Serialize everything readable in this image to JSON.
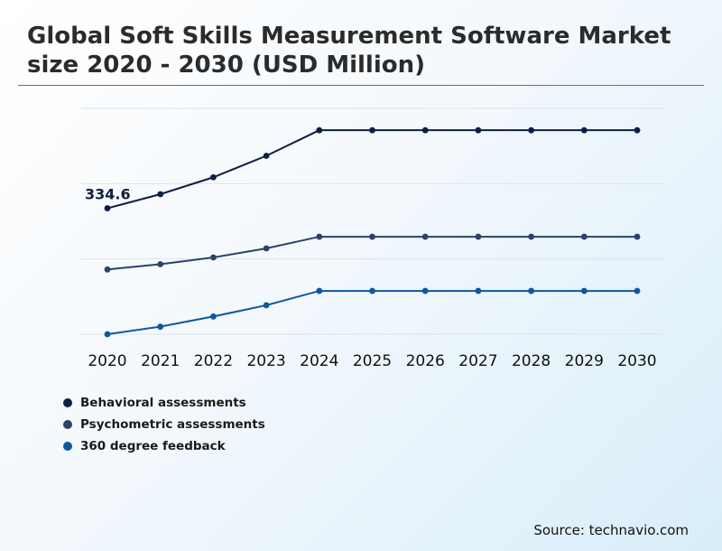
{
  "title": "Global Soft Skills Measurement Software Market size 2020 - 2030 (USD Million)",
  "source": "Source: technavio.com",
  "chart_data": {
    "type": "line",
    "categories": [
      "2020",
      "2021",
      "2022",
      "2023",
      "2024",
      "2025",
      "2026",
      "2027",
      "2028",
      "2029",
      "2030"
    ],
    "ylim": [
      0,
      600
    ],
    "grid": true,
    "legend_position": "bottom-left",
    "series": [
      {
        "name": "Behavioral assessments",
        "color": "#0d1f44",
        "values": [
          334.6,
          372,
          417,
          474,
          542,
          542,
          542,
          542,
          542,
          542,
          542
        ]
      },
      {
        "name": "Psychometric assessments",
        "color": "#2c416b",
        "values": [
          172,
          186,
          204,
          228,
          259,
          259,
          259,
          259,
          259,
          259,
          259
        ]
      },
      {
        "name": "360 degree feedback",
        "color": "#0b58a0",
        "values": [
          0,
          20,
          47,
          77,
          115,
          115,
          115,
          115,
          115,
          115,
          115
        ]
      }
    ],
    "data_labels": [
      {
        "series": 0,
        "index": 0,
        "text": "334.6"
      }
    ]
  }
}
